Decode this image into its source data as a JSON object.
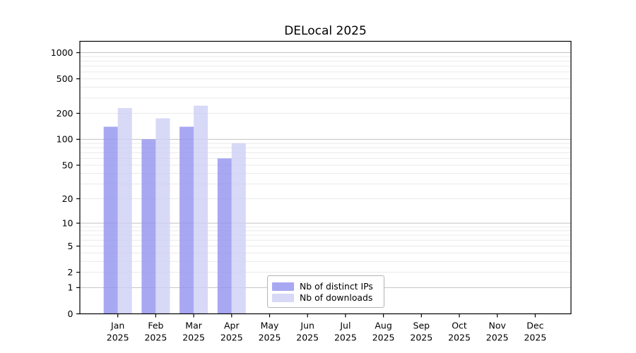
{
  "chart_data": {
    "type": "bar",
    "title": "DELocal 2025",
    "categories": [
      "Jan 2025",
      "Feb 2025",
      "Mar 2025",
      "Apr 2025",
      "May 2025",
      "Jun 2025",
      "Jul 2025",
      "Aug 2025",
      "Sep 2025",
      "Oct 2025",
      "Nov 2025",
      "Dec 2025"
    ],
    "series": [
      {
        "name": "Nb of distinct IPs",
        "color": "#a8a8f2",
        "values": [
          140,
          100,
          140,
          60,
          0,
          0,
          0,
          0,
          0,
          0,
          0,
          0
        ]
      },
      {
        "name": "Nb of downloads",
        "color": "#d8d8f7",
        "values": [
          230,
          175,
          245,
          90,
          0,
          0,
          0,
          0,
          0,
          0,
          0,
          0
        ]
      }
    ],
    "xlabel": "",
    "ylabel": "",
    "yscale": "log1p",
    "yticks": [
      0,
      1,
      2,
      5,
      10,
      20,
      50,
      100,
      200,
      500,
      1000
    ],
    "ylim": [
      0,
      1350
    ],
    "grid": "horizontal, major and minor log gridlines",
    "legend_position": "inside bottom-center"
  },
  "colors": {
    "axis": "#000000",
    "tick_text": "#000000",
    "grid_major": "#c2c2c2",
    "grid_minor": "#e9e9e9",
    "legend_border": "#b3b3b3",
    "legend_background": "#ffffff",
    "figure_background": "#ffffff"
  }
}
